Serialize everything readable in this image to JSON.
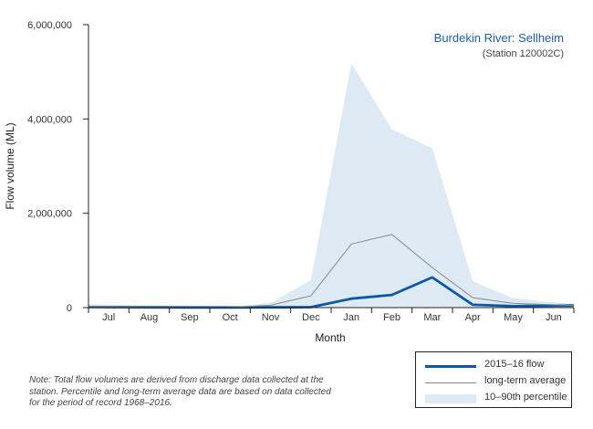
{
  "chart_data": {
    "type": "area",
    "title": "Burdekin River: Sellheim",
    "subtitle": "(Station 120002C)",
    "xlabel": "Month",
    "ylabel": "Flow volume (ML)",
    "categories": [
      "Jul",
      "Aug",
      "Sep",
      "Oct",
      "Nov",
      "Dec",
      "Jan",
      "Feb",
      "Mar",
      "Apr",
      "May",
      "Jun"
    ],
    "ylim": [
      0,
      6000000
    ],
    "yticks": [
      0,
      2000000,
      4000000,
      6000000
    ],
    "ytick_labels": [
      "0",
      "2,000,000",
      "4,000,000",
      "6,000,000"
    ],
    "grid": false,
    "legend_position": "bottom-right",
    "colors": {
      "flow": "#0b57a8",
      "average": "#888888",
      "percentile": "#dde9f3"
    },
    "series": [
      {
        "name": "2015–16 flow",
        "kind": "line",
        "values": [
          10000,
          5000,
          3000,
          2000,
          5000,
          10000,
          190000,
          270000,
          640000,
          60000,
          30000,
          40000
        ]
      },
      {
        "name": "long-term average",
        "kind": "line",
        "values": [
          20000,
          10000,
          5000,
          5000,
          50000,
          250000,
          1350000,
          1550000,
          850000,
          210000,
          90000,
          60000
        ]
      },
      {
        "name": "10–90th percentile",
        "kind": "band",
        "lower": [
          0,
          0,
          0,
          0,
          0,
          0,
          0,
          0,
          0,
          0,
          0,
          0
        ],
        "upper": [
          60000,
          30000,
          25000,
          20000,
          100000,
          580000,
          5180000,
          3780000,
          3380000,
          560000,
          200000,
          110000
        ]
      }
    ],
    "note": "Note: Total flow volumes are derived from discharge data collected at the station. Percentile and long-term average data are based on data collected for the period of record 1968–2016."
  }
}
